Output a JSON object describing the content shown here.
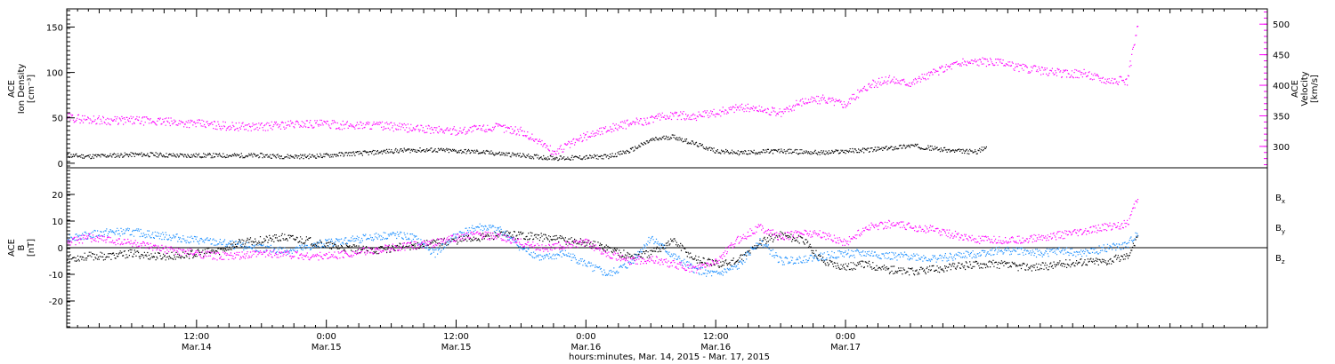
{
  "chart_data": [
    {
      "type": "scatter",
      "panel": "top",
      "ylabel_left": [
        "ACE",
        "Ion Density",
        "[cm⁻³]"
      ],
      "ylabel_right": [
        "ACE",
        "Velocity",
        "[km/s]"
      ],
      "ylim_left": [
        -5,
        170
      ],
      "yticks_left": [
        0,
        50,
        100,
        150
      ],
      "ylim_right": [
        265,
        525
      ],
      "yticks_right": [
        300,
        350,
        400,
        450,
        500
      ],
      "series": [
        {
          "color": "#000000",
          "axis": "left",
          "values": [
            [
              0,
              9
            ],
            [
              2,
              8
            ],
            [
              4,
              9
            ],
            [
              6,
              10
            ],
            [
              8,
              10
            ],
            [
              10,
              9
            ],
            [
              12,
              9
            ],
            [
              14,
              9
            ],
            [
              16,
              9
            ],
            [
              18,
              9
            ],
            [
              20,
              8
            ],
            [
              22,
              8
            ],
            [
              24,
              9
            ],
            [
              26,
              11
            ],
            [
              28,
              12
            ],
            [
              30,
              14
            ],
            [
              32,
              15
            ],
            [
              34,
              15
            ],
            [
              36,
              14
            ],
            [
              38,
              13
            ],
            [
              40,
              11
            ],
            [
              42,
              9
            ],
            [
              44,
              7
            ],
            [
              46,
              6
            ],
            [
              48,
              7
            ],
            [
              50,
              8
            ],
            [
              52,
              14
            ],
            [
              54,
              26
            ],
            [
              56,
              30
            ],
            [
              58,
              22
            ],
            [
              60,
              14
            ],
            [
              62,
              12
            ],
            [
              64,
              13
            ],
            [
              66,
              14
            ],
            [
              68,
              13
            ],
            [
              70,
              12
            ],
            [
              72,
              14
            ],
            [
              74,
              15
            ],
            [
              76,
              17
            ],
            [
              78,
              20
            ],
            [
              80,
              17
            ],
            [
              82,
              14
            ],
            [
              84,
              13
            ],
            [
              85,
              18
            ]
          ]
        },
        {
          "color": "#ff00ff",
          "axis": "right",
          "values": [
            [
              0,
              348
            ],
            [
              2,
              345
            ],
            [
              4,
              343
            ],
            [
              6,
              343
            ],
            [
              8,
              342
            ],
            [
              10,
              340
            ],
            [
              12,
              338
            ],
            [
              14,
              335
            ],
            [
              16,
              333
            ],
            [
              18,
              333
            ],
            [
              20,
              336
            ],
            [
              22,
              338
            ],
            [
              24,
              337
            ],
            [
              26,
              335
            ],
            [
              28,
              336
            ],
            [
              30,
              333
            ],
            [
              32,
              330
            ],
            [
              34,
              328
            ],
            [
              36,
              326
            ],
            [
              38,
              330
            ],
            [
              40,
              332
            ],
            [
              42,
              325
            ],
            [
              44,
              305
            ],
            [
              45,
              290
            ],
            [
              46,
              300
            ],
            [
              48,
              318
            ],
            [
              50,
              330
            ],
            [
              52,
              338
            ],
            [
              54,
              345
            ],
            [
              56,
              352
            ],
            [
              58,
              350
            ],
            [
              60,
              355
            ],
            [
              62,
              365
            ],
            [
              64,
              362
            ],
            [
              66,
              355
            ],
            [
              68,
              375
            ],
            [
              70,
              378
            ],
            [
              72,
              370
            ],
            [
              74,
              400
            ],
            [
              76,
              410
            ],
            [
              78,
              405
            ],
            [
              80,
              420
            ],
            [
              82,
              435
            ],
            [
              84,
              440
            ],
            [
              86,
              438
            ],
            [
              88,
              430
            ],
            [
              90,
              425
            ],
            [
              92,
              420
            ],
            [
              94,
              420
            ],
            [
              96,
              410
            ],
            [
              98,
              408
            ],
            [
              99,
              500
            ]
          ]
        }
      ]
    },
    {
      "type": "scatter",
      "panel": "bottom",
      "ylabel_left": [
        "ACE",
        "B",
        "[nT]"
      ],
      "ylim": [
        -30,
        30
      ],
      "yticks": [
        -20,
        -10,
        0,
        10,
        20
      ],
      "zero_line": true,
      "legend": [
        {
          "label": "B",
          "sub": "x",
          "color": "#000000"
        },
        {
          "label": "B",
          "sub": "y",
          "color": "#1e90ff"
        },
        {
          "label": "B",
          "sub": "z",
          "color": "#ff00ff"
        }
      ],
      "series": [
        {
          "name": "Bx",
          "color": "#000000",
          "values": [
            [
              0,
              -4
            ],
            [
              2,
              -3
            ],
            [
              4,
              -3
            ],
            [
              6,
              -2
            ],
            [
              8,
              -3
            ],
            [
              10,
              -3
            ],
            [
              12,
              -2
            ],
            [
              14,
              -1
            ],
            [
              16,
              2
            ],
            [
              18,
              3
            ],
            [
              20,
              4
            ],
            [
              22,
              3
            ],
            [
              24,
              1
            ],
            [
              26,
              0
            ],
            [
              28,
              -1
            ],
            [
              30,
              0
            ],
            [
              32,
              1
            ],
            [
              34,
              2
            ],
            [
              36,
              3
            ],
            [
              38,
              4
            ],
            [
              40,
              5
            ],
            [
              42,
              5
            ],
            [
              44,
              4
            ],
            [
              46,
              3
            ],
            [
              48,
              2
            ],
            [
              50,
              0
            ],
            [
              52,
              -3
            ],
            [
              54,
              -2
            ],
            [
              56,
              3
            ],
            [
              58,
              -4
            ],
            [
              60,
              -6
            ],
            [
              62,
              -5
            ],
            [
              64,
              2
            ],
            [
              66,
              5
            ],
            [
              68,
              3
            ],
            [
              70,
              -5
            ],
            [
              72,
              -7
            ],
            [
              74,
              -6
            ],
            [
              76,
              -8
            ],
            [
              78,
              -9
            ],
            [
              80,
              -8
            ],
            [
              82,
              -7
            ],
            [
              84,
              -6
            ],
            [
              86,
              -6
            ],
            [
              88,
              -7
            ],
            [
              90,
              -7
            ],
            [
              92,
              -6
            ],
            [
              94,
              -5
            ],
            [
              96,
              -5
            ],
            [
              98,
              -3
            ],
            [
              99,
              4
            ]
          ]
        },
        {
          "name": "By",
          "color": "#1e90ff",
          "values": [
            [
              0,
              4
            ],
            [
              2,
              5
            ],
            [
              4,
              6
            ],
            [
              6,
              6
            ],
            [
              8,
              5
            ],
            [
              10,
              4
            ],
            [
              12,
              3
            ],
            [
              14,
              2
            ],
            [
              16,
              1
            ],
            [
              18,
              0
            ],
            [
              20,
              -1
            ],
            [
              22,
              0
            ],
            [
              24,
              2
            ],
            [
              26,
              3
            ],
            [
              28,
              4
            ],
            [
              30,
              5
            ],
            [
              32,
              4
            ],
            [
              34,
              -2
            ],
            [
              36,
              5
            ],
            [
              38,
              8
            ],
            [
              40,
              7
            ],
            [
              42,
              0
            ],
            [
              44,
              -4
            ],
            [
              46,
              -2
            ],
            [
              48,
              -6
            ],
            [
              50,
              -10
            ],
            [
              52,
              -6
            ],
            [
              54,
              4
            ],
            [
              56,
              -3
            ],
            [
              58,
              -8
            ],
            [
              60,
              -10
            ],
            [
              62,
              -7
            ],
            [
              64,
              3
            ],
            [
              66,
              -5
            ],
            [
              68,
              -4
            ],
            [
              70,
              -3
            ],
            [
              72,
              -2
            ],
            [
              74,
              -2
            ],
            [
              76,
              -3
            ],
            [
              78,
              -3
            ],
            [
              80,
              -4
            ],
            [
              82,
              -3
            ],
            [
              84,
              -2
            ],
            [
              86,
              -1
            ],
            [
              88,
              -1
            ],
            [
              90,
              -2
            ],
            [
              92,
              -1
            ],
            [
              94,
              -2
            ],
            [
              96,
              0
            ],
            [
              98,
              1
            ],
            [
              99,
              6
            ]
          ]
        },
        {
          "name": "Bz",
          "color": "#ff00ff",
          "values": [
            [
              0,
              2
            ],
            [
              2,
              4
            ],
            [
              4,
              3
            ],
            [
              6,
              2
            ],
            [
              8,
              0
            ],
            [
              10,
              -1
            ],
            [
              12,
              -2
            ],
            [
              14,
              -3
            ],
            [
              16,
              -3
            ],
            [
              18,
              -2
            ],
            [
              20,
              -2
            ],
            [
              22,
              -3
            ],
            [
              24,
              -3
            ],
            [
              26,
              -2
            ],
            [
              28,
              -1
            ],
            [
              30,
              0
            ],
            [
              32,
              1
            ],
            [
              34,
              2
            ],
            [
              36,
              4
            ],
            [
              38,
              5
            ],
            [
              40,
              4
            ],
            [
              42,
              2
            ],
            [
              44,
              0
            ],
            [
              46,
              1
            ],
            [
              48,
              2
            ],
            [
              50,
              -2
            ],
            [
              52,
              -5
            ],
            [
              54,
              -4
            ],
            [
              56,
              -6
            ],
            [
              58,
              -8
            ],
            [
              60,
              -5
            ],
            [
              62,
              3
            ],
            [
              64,
              8
            ],
            [
              66,
              4
            ],
            [
              68,
              6
            ],
            [
              70,
              5
            ],
            [
              72,
              2
            ],
            [
              74,
              8
            ],
            [
              76,
              9
            ],
            [
              78,
              8
            ],
            [
              80,
              7
            ],
            [
              82,
              5
            ],
            [
              84,
              3
            ],
            [
              86,
              3
            ],
            [
              88,
              3
            ],
            [
              90,
              4
            ],
            [
              92,
              5
            ],
            [
              94,
              6
            ],
            [
              96,
              8
            ],
            [
              98,
              9
            ],
            [
              99,
              19
            ]
          ]
        }
      ]
    }
  ],
  "x_axis": {
    "xlim": [
      0,
      111
    ],
    "ticks": [
      {
        "x": 12,
        "time": "12:00",
        "date": "Mar.14"
      },
      {
        "x": 24,
        "time": "0:00",
        "date": "Mar.15"
      },
      {
        "x": 36,
        "time": "12:00",
        "date": "Mar.15"
      },
      {
        "x": 48,
        "time": "0:00",
        "date": "Mar.16"
      },
      {
        "x": 60,
        "time": "12:00",
        "date": "Mar.16"
      },
      {
        "x": 72,
        "time": "0:00",
        "date": "Mar.17"
      }
    ],
    "xlabel": "hours:minutes, Mar. 14, 2015 - Mar. 17, 2015"
  }
}
